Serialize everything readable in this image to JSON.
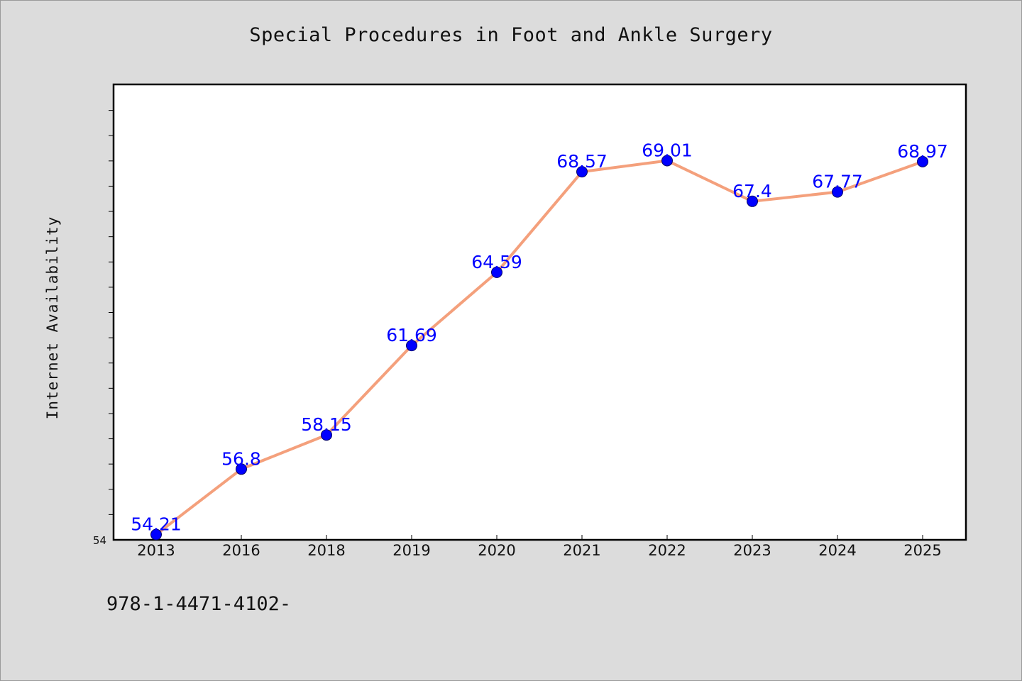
{
  "title": "Special Procedures in Foot and Ankle Surgery",
  "footer_text": "978-1-4471-4102-",
  "chart_data": {
    "type": "line",
    "title": "Special Procedures in Foot and Ankle Surgery",
    "xlabel": "",
    "ylabel": "Internet Availability",
    "categories": [
      "2013",
      "2016",
      "2018",
      "2019",
      "2020",
      "2021",
      "2022",
      "2023",
      "2024",
      "2025"
    ],
    "series": [
      {
        "values": [
          54.21,
          56.8,
          58.15,
          61.69,
          64.59,
          68.57,
          69.01,
          67.4,
          67.77,
          68.97
        ],
        "data_labels": [
          "54.21",
          "56.8",
          "58.15",
          "61.69",
          "64.59",
          "68.57",
          "69.01",
          "67.4",
          "67.77",
          "68.97"
        ],
        "line_color": "#f4a07c",
        "marker_color": "#0000ff"
      }
    ],
    "y_min_label": "54",
    "ylim": [
      54,
      72
    ],
    "grid": false,
    "legend": "none",
    "colors": {
      "background": "#dcdcdc",
      "plot_background": "#ffffff",
      "line": "#f4a07c",
      "marker": "#0000ff",
      "data_label": "#0000ff"
    }
  }
}
